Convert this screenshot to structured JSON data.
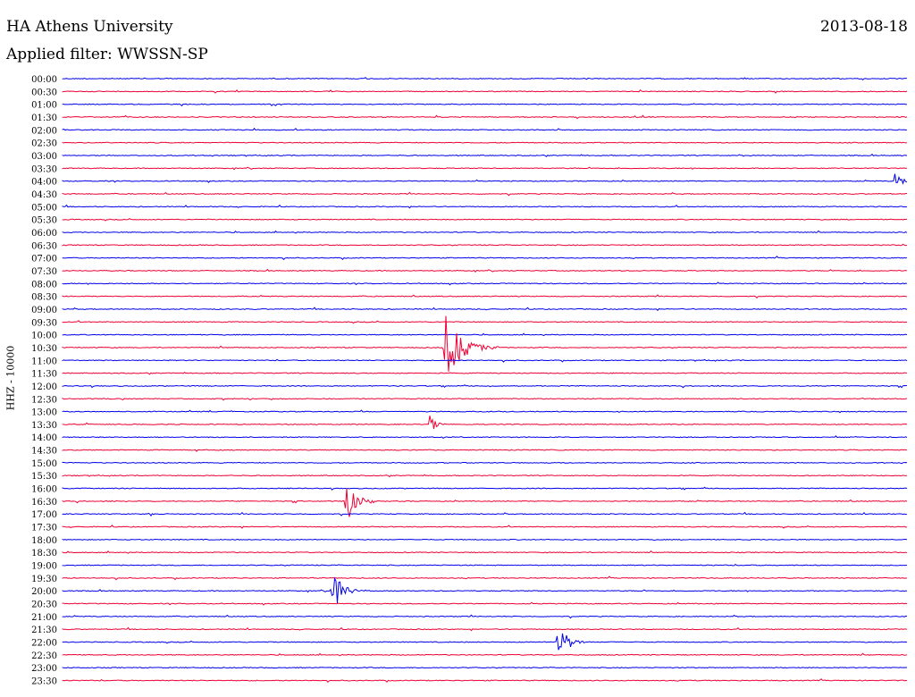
{
  "header": {
    "title": "HA Athens University",
    "filter": "Applied filter: WWSSN-SP",
    "date": "2013-08-18"
  },
  "chart_data": {
    "type": "line",
    "title": "HA Athens University",
    "subtitle": "Applied filter: WWSSN-SP",
    "date": "2013-08-18",
    "ylabel": "HHZ - 10000",
    "tick_labels": [
      "00:00",
      "00:30",
      "01:00",
      "01:30",
      "02:00",
      "02:30",
      "03:00",
      "03:30",
      "04:00",
      "04:30",
      "05:00",
      "05:30",
      "06:00",
      "06:30",
      "07:00",
      "07:30",
      "08:00",
      "08:30",
      "09:00",
      "09:30",
      "10:00",
      "10:30",
      "11:00",
      "11:30",
      "12:00",
      "12:30",
      "13:00",
      "13:30",
      "14:00",
      "14:30",
      "15:00",
      "15:30",
      "16:00",
      "16:30",
      "17:00",
      "17:30",
      "18:00",
      "18:30",
      "19:00",
      "19:30",
      "20:00",
      "20:30",
      "21:00",
      "21:30",
      "22:00",
      "22:30",
      "23:00",
      "23:30"
    ],
    "colors": {
      "even_rows": "#0000ee",
      "odd_rows": "#ee0033"
    },
    "grid": false,
    "events": [
      {
        "row": "04:00",
        "offset_min": 29.5,
        "amplitude": 0.9,
        "duration_min": 1.0
      },
      {
        "row": "10:30",
        "offset_min": 13.5,
        "amplitude": 3.2,
        "duration_min": 2.0
      },
      {
        "row": "13:30",
        "offset_min": 13.0,
        "amplitude": 1.2,
        "duration_min": 0.6
      },
      {
        "row": "16:30",
        "offset_min": 10.0,
        "amplitude": 2.3,
        "duration_min": 1.3
      },
      {
        "row": "17:00",
        "offset_min": 3.0,
        "amplitude": 0.5,
        "duration_min": 0.5
      },
      {
        "row": "20:00",
        "offset_min": 9.5,
        "amplitude": 2.1,
        "duration_min": 1.3
      },
      {
        "row": "22:00",
        "offset_min": 17.5,
        "amplitude": 2.2,
        "duration_min": 1.2
      },
      {
        "row": "11:00",
        "offset_min": 21.5,
        "amplitude": 0.2,
        "duration_min": 0.3
      },
      {
        "row": "03:00",
        "offset_min": 24.0,
        "amplitude": 0.2,
        "duration_min": 0.5
      }
    ]
  }
}
